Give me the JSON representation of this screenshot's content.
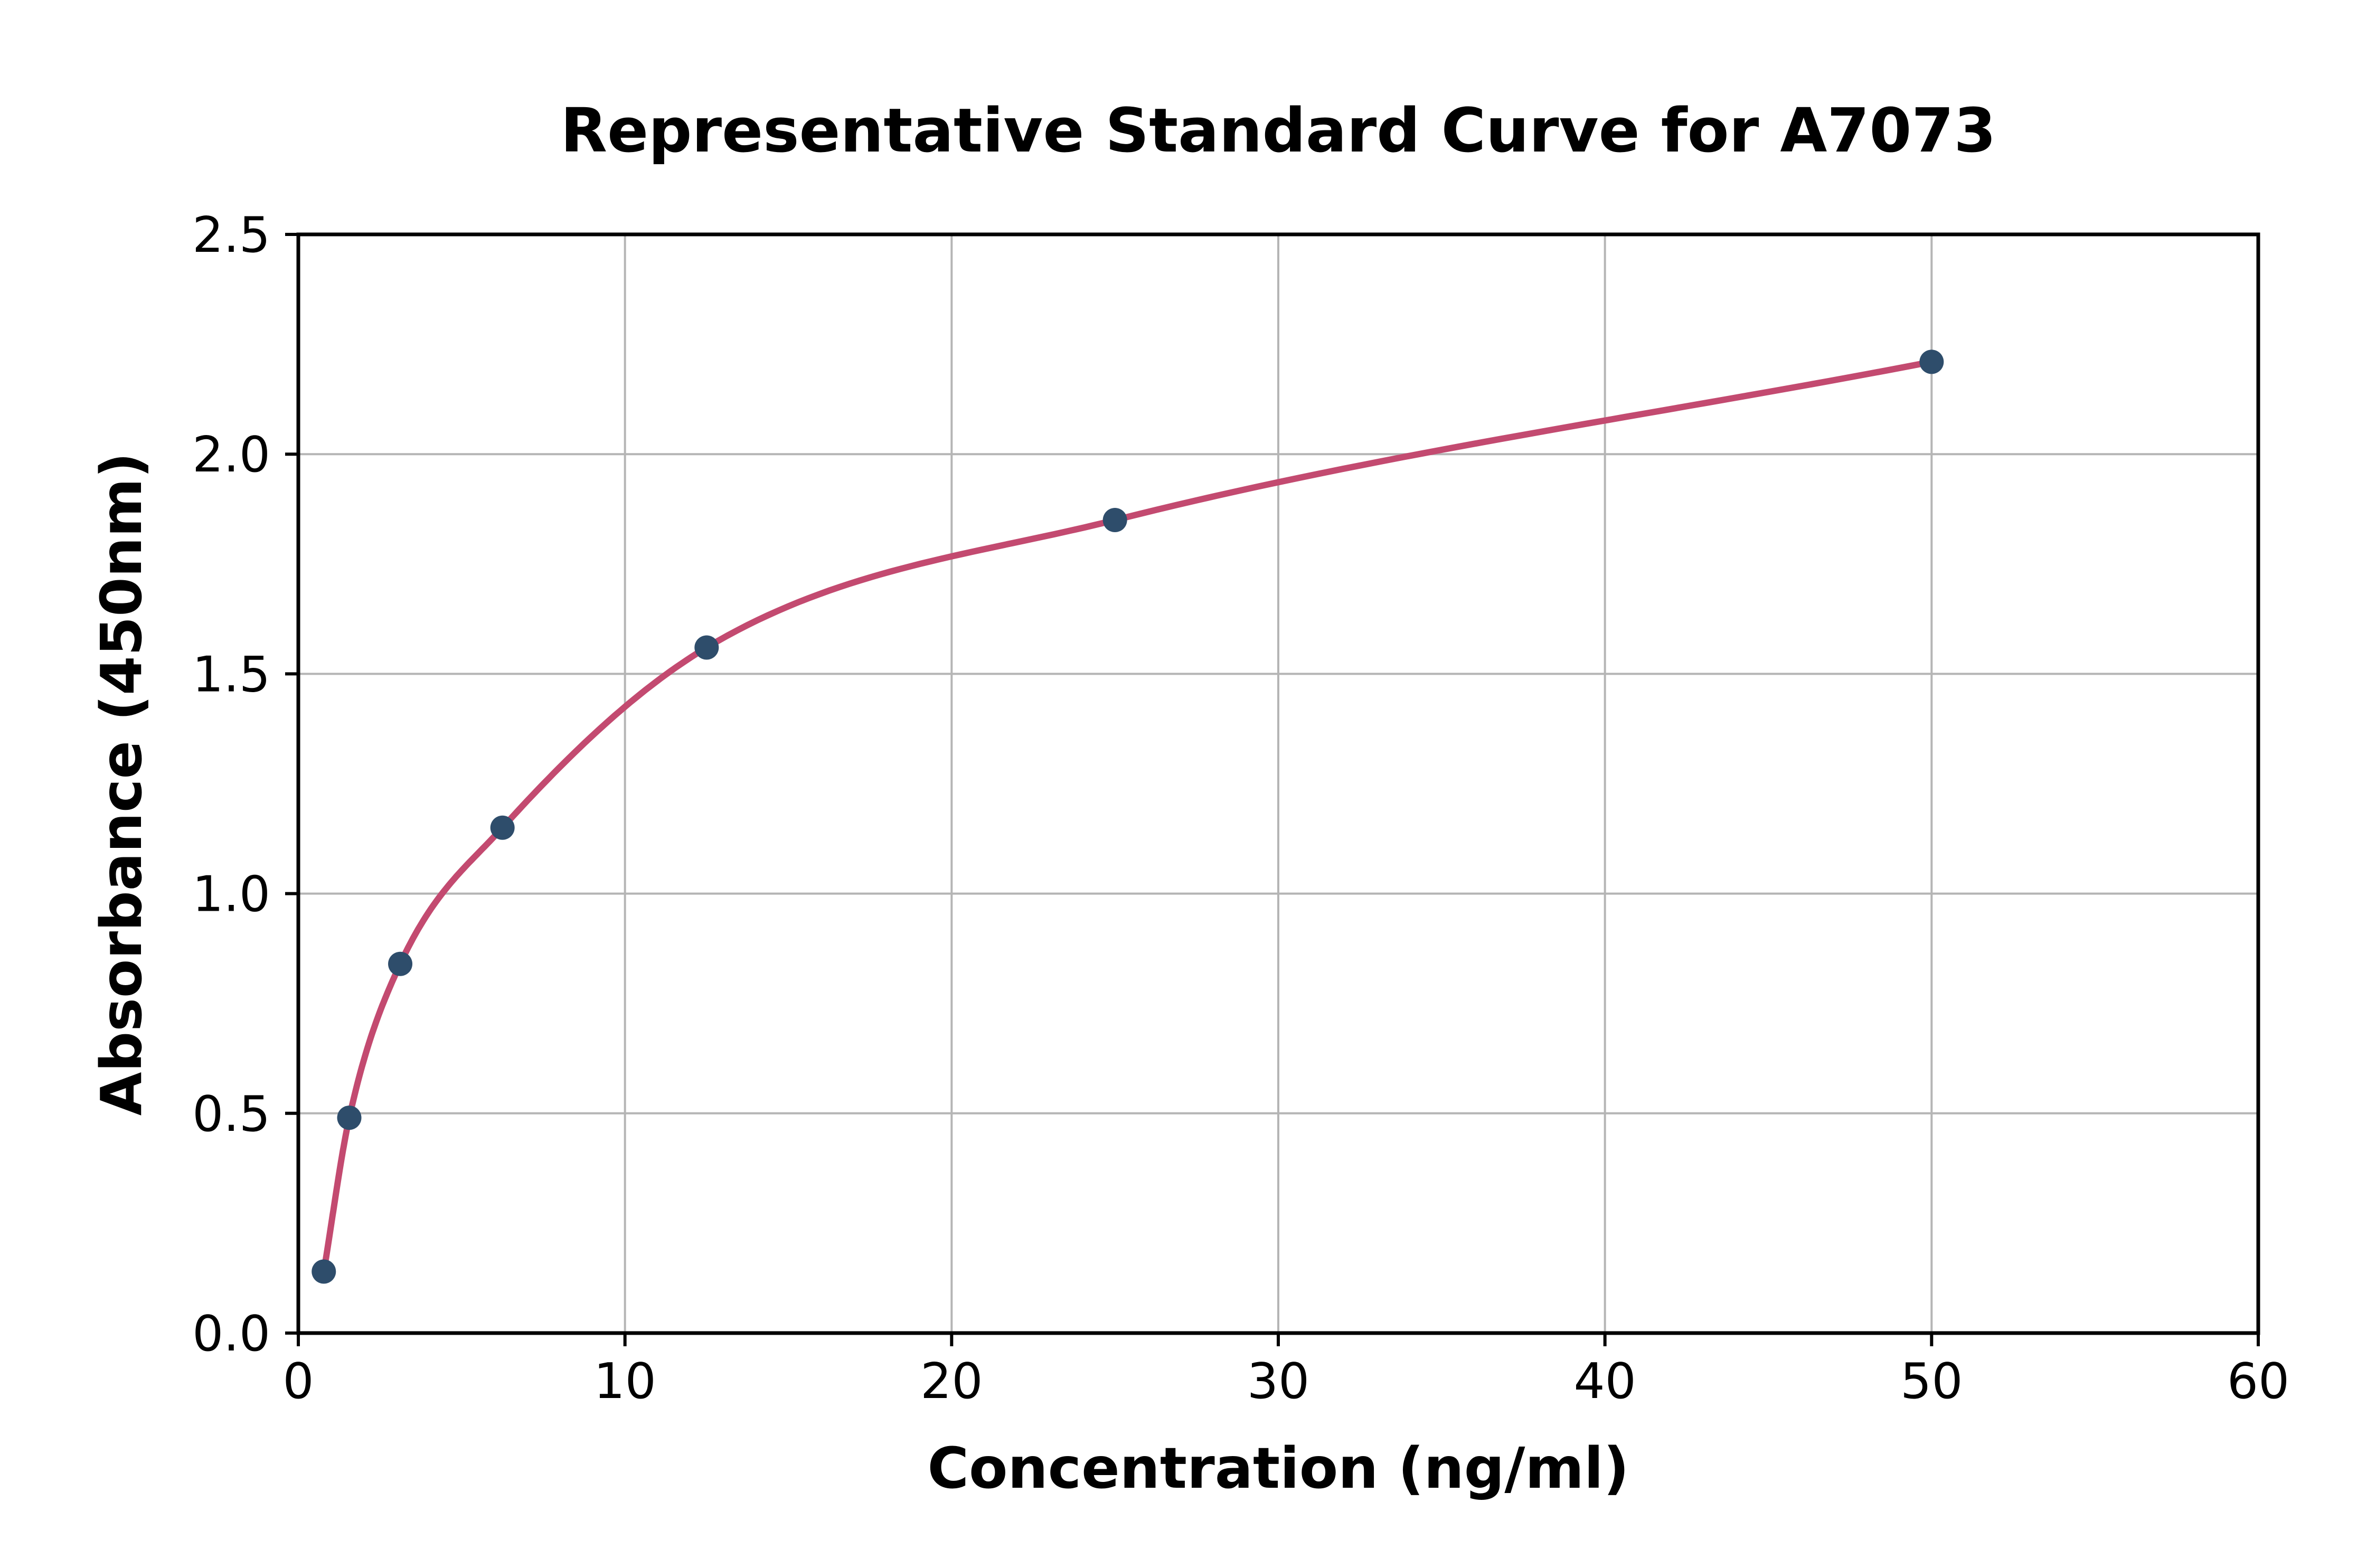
{
  "chart": {
    "title": "Representative Standard Curve for A7073",
    "xlabel": "Concentration (ng/ml)",
    "ylabel": "Absorbance (450nm)"
  },
  "chart_data": {
    "type": "scatter",
    "title": "Representative Standard Curve for A7073",
    "xlabel": "Concentration (ng/ml)",
    "ylabel": "Absorbance (450nm)",
    "x": [
      0.78,
      1.56,
      3.12,
      6.25,
      12.5,
      25,
      50
    ],
    "y": [
      0.14,
      0.49,
      0.84,
      1.15,
      1.56,
      1.85,
      2.21
    ],
    "series": [
      {
        "name": "standard-curve-fit",
        "style": "smooth-line-through-points",
        "x": [
          0.78,
          1.56,
          3.12,
          6.25,
          12.5,
          25,
          50
        ],
        "y": [
          0.14,
          0.49,
          0.84,
          1.15,
          1.56,
          1.85,
          2.21
        ]
      }
    ],
    "xlim": [
      0,
      60
    ],
    "ylim": [
      0,
      2.5
    ],
    "x_ticks": [
      0,
      10,
      20,
      30,
      40,
      50,
      60
    ],
    "y_ticks": [
      0.0,
      0.5,
      1.0,
      1.5,
      2.0,
      2.5
    ],
    "y_tick_decimals": 1,
    "grid": true,
    "legend": "none",
    "colors": {
      "marker": "#2e4d6b",
      "curve": "#c34a70",
      "grid": "#b5b5b5",
      "axis": "#000000",
      "background": "#ffffff"
    }
  }
}
